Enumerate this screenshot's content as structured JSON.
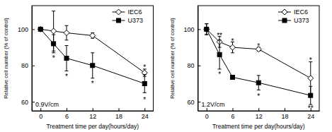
{
  "chart_data": [
    {
      "type": "line",
      "title": "0.9V/cm",
      "x_label": "Treatment time per day(hours/day)",
      "y_label": "Relative cell number (% of control)",
      "x": [
        0,
        3,
        6,
        12,
        24
      ],
      "xlim": [
        -2,
        26
      ],
      "ylim": [
        55,
        113
      ],
      "xticks": [
        0,
        6,
        12,
        18,
        24
      ],
      "yticks": [
        60,
        80,
        100
      ],
      "legend": "upper right",
      "series": [
        {
          "name": "IEC6",
          "color": "#000000",
          "marker": "open-diamond",
          "values": [
            100,
            99,
            98,
            96.5,
            76
          ],
          "errors": [
            0,
            11,
            4,
            1.5,
            2
          ]
        },
        {
          "name": "U373",
          "color": "#000000",
          "marker": "square",
          "values": [
            100,
            92,
            84,
            80,
            70
          ],
          "errors": [
            0,
            5,
            7,
            7,
            5
          ]
        }
      ],
      "annotations": [
        {
          "x": 3,
          "y": 85,
          "text": "*"
        },
        {
          "x": 6,
          "y": 75,
          "text": "*"
        },
        {
          "x": 12,
          "y": 71,
          "text": "*"
        },
        {
          "x": 24,
          "y": 80,
          "text": "*"
        },
        {
          "x": 24,
          "y": 62,
          "text": "*"
        }
      ]
    },
    {
      "type": "line",
      "title": "1.2V/cm",
      "x_label": "Treatment time per day(hours/day)",
      "y_label": "Relative cell number (% of control)",
      "x": [
        0,
        3,
        6,
        12,
        24
      ],
      "xlim": [
        -2,
        26
      ],
      "ylim": [
        55,
        113
      ],
      "xticks": [
        0,
        6,
        12,
        18,
        24
      ],
      "yticks": [
        60,
        80,
        100
      ],
      "legend": "upper right",
      "series": [
        {
          "name": "IEC6",
          "color": "#000000",
          "marker": "open-diamond",
          "values": [
            100,
            93,
            90,
            89,
            73
          ],
          "errors": [
            3,
            3,
            3,
            1,
            9
          ]
        },
        {
          "name": "U373",
          "color": "#000000",
          "marker": "square",
          "values": [
            100,
            86,
            73.5,
            70.5,
            63.5
          ],
          "errors": [
            3,
            8,
            1,
            4,
            5
          ]
        }
      ],
      "annotations": [
        {
          "x": 3,
          "y": 97.5,
          "text": "**"
        },
        {
          "x": 3,
          "y": 76,
          "text": "*"
        },
        {
          "x": 6,
          "y": 94.5,
          "text": "*"
        },
        {
          "x": 12,
          "y": 91.5,
          "text": "*"
        },
        {
          "x": 12,
          "y": 64,
          "text": "*"
        },
        {
          "x": 24,
          "y": 84,
          "text": "*"
        },
        {
          "x": 24,
          "y": 57.5,
          "text": "**"
        }
      ]
    }
  ]
}
